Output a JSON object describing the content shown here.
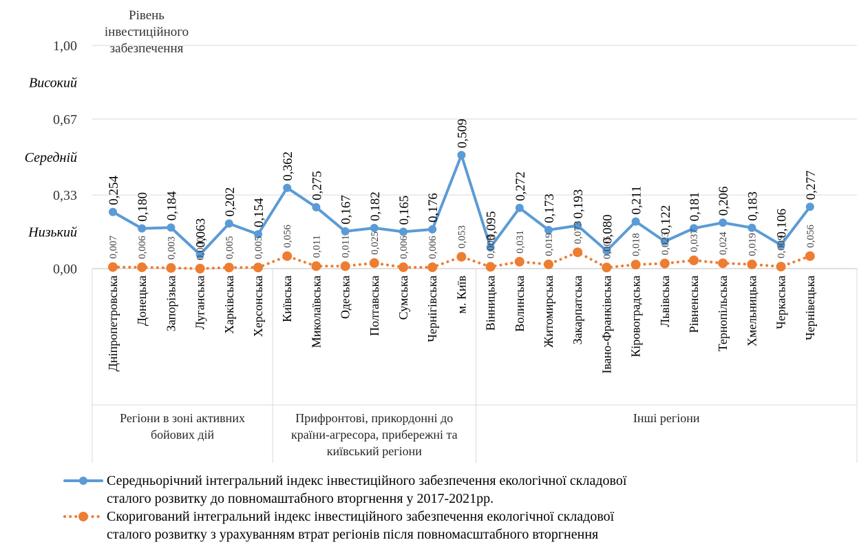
{
  "chart_data": {
    "type": "line",
    "y_title_lines": [
      "Рівень",
      "інвестиційного",
      "забезпечення"
    ],
    "ylim": [
      0,
      1
    ],
    "yticks": [
      {
        "value": 1.0,
        "label": "1,00"
      },
      {
        "value": 0.67,
        "label": "0,67"
      },
      {
        "value": 0.33,
        "label": "0,33"
      },
      {
        "value": 0.0,
        "label": "0,00"
      }
    ],
    "level_labels": [
      {
        "value": 0.835,
        "label": "Високий"
      },
      {
        "value": 0.5,
        "label": "Середній"
      },
      {
        "value": 0.165,
        "label": "Низький"
      }
    ],
    "categories": [
      "Дніпропетровська",
      "Донецька",
      "Запорізька",
      "Луганська",
      "Харківська",
      "Херсонська",
      "Київська",
      "Миколаївська",
      "Одеська",
      "Полтавська",
      "Сумська",
      "Чернігівська",
      "м. Київ",
      "Вінницька",
      "Волинська",
      "Житомирська",
      "Закарпатська",
      "Івано-Франківська",
      "Кіровоградська",
      "Львівська",
      "Рівненська",
      "Тернопільська",
      "Хмельницька",
      "Черкаська",
      "Чернівецька"
    ],
    "groups": [
      {
        "lines": [
          "Регіони в зоні активних",
          "бойових дій"
        ],
        "start": 0,
        "end": 5
      },
      {
        "lines": [
          "Прифронтові, прикордонні до",
          "країни-агресора, прибережні та",
          "київський регіони"
        ],
        "start": 6,
        "end": 12
      },
      {
        "lines": [
          "Інші  регіони"
        ],
        "start": 13,
        "end": 24
      }
    ],
    "series": [
      {
        "name": "Середньорічний інтегральний індекс інвестиційного забезпечення екологічної складової сталого розвитку до повномаштабного вторгнення у 2017-2021рр.",
        "legend_lines": [
          "Середньорічний інтегральний індекс інвестиційного забезпечення екологічної складової",
          "сталого розвитку до повномаштабного вторгнення у 2017-2021рр."
        ],
        "color": "#5B9BD5",
        "style": "solid",
        "values": [
          0.254,
          0.18,
          0.184,
          0.063,
          0.202,
          0.154,
          0.362,
          0.275,
          0.167,
          0.182,
          0.165,
          0.176,
          0.509,
          0.095,
          0.272,
          0.173,
          0.193,
          0.08,
          0.211,
          0.122,
          0.181,
          0.206,
          0.183,
          0.106,
          0.277
        ],
        "labels": [
          "0,254",
          "0,180",
          "0,184",
          "0,063",
          "0,202",
          "0,154",
          "0,362",
          "0,275",
          "0,167",
          "0,182",
          "0,165",
          "0,176",
          "0,509",
          "0,095",
          "0,272",
          "0,173",
          "0,193",
          "0,080",
          "0,211",
          "0,122",
          "0,181",
          "0,206",
          "0,183",
          "0,106",
          "0,277"
        ]
      },
      {
        "name": "Скоригований інтегральний індекс інвестиційного забезпечення екологічної складової сталого розвитку з урахуванням втрат регіонів після повномасштабного вторгнення",
        "legend_lines": [
          "Скоригований інтегральний індекс інвестиційного забезпечення екологічної складової",
          "сталого розвитку з урахуванням втрат регіонів після повномасштабного вторгнення"
        ],
        "color": "#ED7D31",
        "style": "dotted",
        "values": [
          0.007,
          0.006,
          0.003,
          0.0,
          0.005,
          0.005,
          0.056,
          0.011,
          0.011,
          0.025,
          0.006,
          0.006,
          0.053,
          0.008,
          0.031,
          0.019,
          0.073,
          0.005,
          0.018,
          0.023,
          0.037,
          0.024,
          0.019,
          0.009,
          0.056
        ],
        "labels": [
          "0,007",
          "0,006",
          "0,003",
          "0,000",
          "0,005",
          "0,005",
          "0,056",
          "0,011",
          "0,011",
          "0,025",
          "0,006",
          "0,006",
          "0,053",
          "0,008",
          "0,031",
          "0,019",
          "0,073",
          "0,005",
          "0,018",
          "0,023",
          "0,037",
          "0,024",
          "0,019",
          "0,009",
          "0,056"
        ]
      }
    ]
  }
}
